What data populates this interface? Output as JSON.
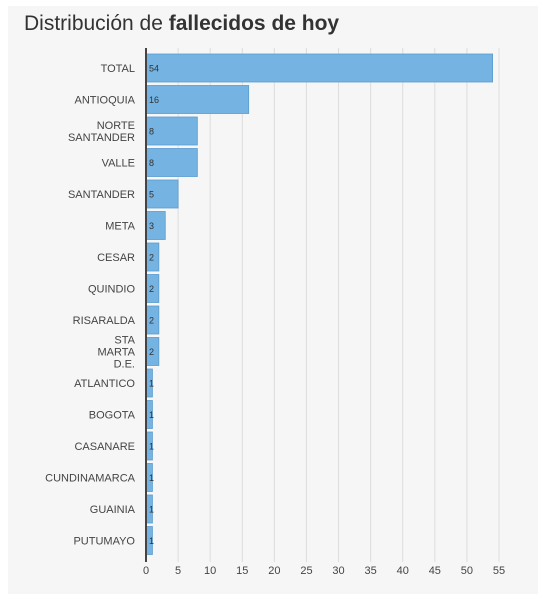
{
  "title_regular": "Distribución de ",
  "title_bold": "fallecidos de hoy",
  "colors": {
    "bar": "#74b3e2",
    "bar_stroke": "#5a9bd0",
    "grid": "#dddddd",
    "axis": "#444444"
  },
  "chart_data": {
    "type": "bar",
    "orientation": "horizontal",
    "title": "Distribución de fallecidos de hoy",
    "categories": [
      "TOTAL",
      "ANTIOQUIA",
      "NORTE SANTANDER",
      "VALLE",
      "SANTANDER",
      "META",
      "CESAR",
      "QUINDIO",
      "RISARALDA",
      "STA MARTA D.E.",
      "ATLANTICO",
      "BOGOTA",
      "CASANARE",
      "CUNDINAMARCA",
      "GUAINIA",
      "PUTUMAYO"
    ],
    "values": [
      54,
      16,
      8,
      8,
      5,
      3,
      2,
      2,
      2,
      2,
      1,
      1,
      1,
      1,
      1,
      1
    ],
    "xticks": [
      0,
      5,
      10,
      15,
      20,
      25,
      30,
      35,
      40,
      45,
      50,
      55
    ],
    "xlim": [
      0,
      55
    ],
    "grid": true,
    "legend": "none"
  }
}
